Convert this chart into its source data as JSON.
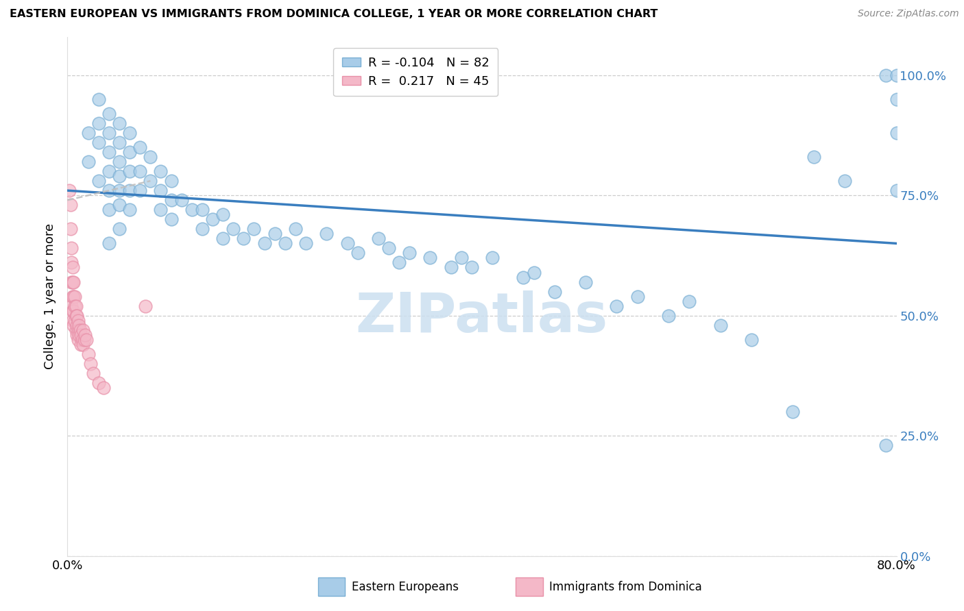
{
  "title": "EASTERN EUROPEAN VS IMMIGRANTS FROM DOMINICA COLLEGE, 1 YEAR OR MORE CORRELATION CHART",
  "source": "Source: ZipAtlas.com",
  "ylabel": "College, 1 year or more",
  "xlim": [
    0.0,
    0.8
  ],
  "ylim": [
    0.0,
    1.08
  ],
  "blue_R": -0.104,
  "blue_N": 82,
  "pink_R": 0.217,
  "pink_N": 45,
  "blue_color": "#a8cce8",
  "blue_edge_color": "#7aafd4",
  "blue_line_color": "#3a7ebf",
  "pink_color": "#f4b8c8",
  "pink_edge_color": "#e890a8",
  "pink_line_color": "#c0c0c0",
  "watermark": "ZIPatlas",
  "watermark_color": "#cce0f0",
  "legend_label_blue": "Eastern Europeans",
  "legend_label_pink": "Immigrants from Dominica",
  "blue_x": [
    0.02,
    0.02,
    0.03,
    0.03,
    0.03,
    0.03,
    0.04,
    0.04,
    0.04,
    0.04,
    0.04,
    0.04,
    0.04,
    0.05,
    0.05,
    0.05,
    0.05,
    0.05,
    0.05,
    0.05,
    0.06,
    0.06,
    0.06,
    0.06,
    0.06,
    0.07,
    0.07,
    0.07,
    0.08,
    0.08,
    0.09,
    0.09,
    0.09,
    0.1,
    0.1,
    0.1,
    0.11,
    0.12,
    0.13,
    0.13,
    0.14,
    0.15,
    0.15,
    0.16,
    0.17,
    0.18,
    0.19,
    0.2,
    0.21,
    0.22,
    0.23,
    0.25,
    0.27,
    0.28,
    0.3,
    0.31,
    0.32,
    0.33,
    0.35,
    0.37,
    0.38,
    0.39,
    0.41,
    0.44,
    0.45,
    0.47,
    0.5,
    0.53,
    0.55,
    0.58,
    0.6,
    0.63,
    0.66,
    0.7,
    0.72,
    0.75,
    0.79,
    0.79,
    0.8,
    0.8,
    0.8,
    0.8
  ],
  "blue_y": [
    0.88,
    0.82,
    0.95,
    0.9,
    0.86,
    0.78,
    0.92,
    0.88,
    0.84,
    0.8,
    0.76,
    0.72,
    0.65,
    0.9,
    0.86,
    0.82,
    0.79,
    0.76,
    0.73,
    0.68,
    0.88,
    0.84,
    0.8,
    0.76,
    0.72,
    0.85,
    0.8,
    0.76,
    0.83,
    0.78,
    0.8,
    0.76,
    0.72,
    0.78,
    0.74,
    0.7,
    0.74,
    0.72,
    0.72,
    0.68,
    0.7,
    0.71,
    0.66,
    0.68,
    0.66,
    0.68,
    0.65,
    0.67,
    0.65,
    0.68,
    0.65,
    0.67,
    0.65,
    0.63,
    0.66,
    0.64,
    0.61,
    0.63,
    0.62,
    0.6,
    0.62,
    0.6,
    0.62,
    0.58,
    0.59,
    0.55,
    0.57,
    0.52,
    0.54,
    0.5,
    0.53,
    0.48,
    0.45,
    0.3,
    0.83,
    0.78,
    0.23,
    1.0,
    0.95,
    1.0,
    0.88,
    0.76
  ],
  "pink_x": [
    0.002,
    0.003,
    0.003,
    0.004,
    0.004,
    0.004,
    0.004,
    0.005,
    0.005,
    0.005,
    0.005,
    0.005,
    0.006,
    0.006,
    0.006,
    0.006,
    0.007,
    0.007,
    0.007,
    0.008,
    0.008,
    0.008,
    0.009,
    0.009,
    0.009,
    0.01,
    0.01,
    0.01,
    0.011,
    0.011,
    0.012,
    0.013,
    0.013,
    0.014,
    0.015,
    0.015,
    0.016,
    0.017,
    0.018,
    0.02,
    0.022,
    0.025,
    0.03,
    0.035,
    0.075
  ],
  "pink_y": [
    0.76,
    0.73,
    0.68,
    0.64,
    0.61,
    0.57,
    0.52,
    0.6,
    0.57,
    0.54,
    0.51,
    0.49,
    0.57,
    0.54,
    0.51,
    0.48,
    0.54,
    0.52,
    0.49,
    0.52,
    0.5,
    0.47,
    0.5,
    0.48,
    0.46,
    0.49,
    0.47,
    0.45,
    0.48,
    0.46,
    0.47,
    0.46,
    0.44,
    0.45,
    0.47,
    0.44,
    0.45,
    0.46,
    0.45,
    0.42,
    0.4,
    0.38,
    0.36,
    0.35,
    0.52
  ],
  "blue_trend_x": [
    0.0,
    0.8
  ],
  "blue_trend_y": [
    0.76,
    0.65
  ],
  "pink_trend_x": [
    0.0,
    0.08
  ],
  "pink_trend_y": [
    0.74,
    0.78
  ]
}
